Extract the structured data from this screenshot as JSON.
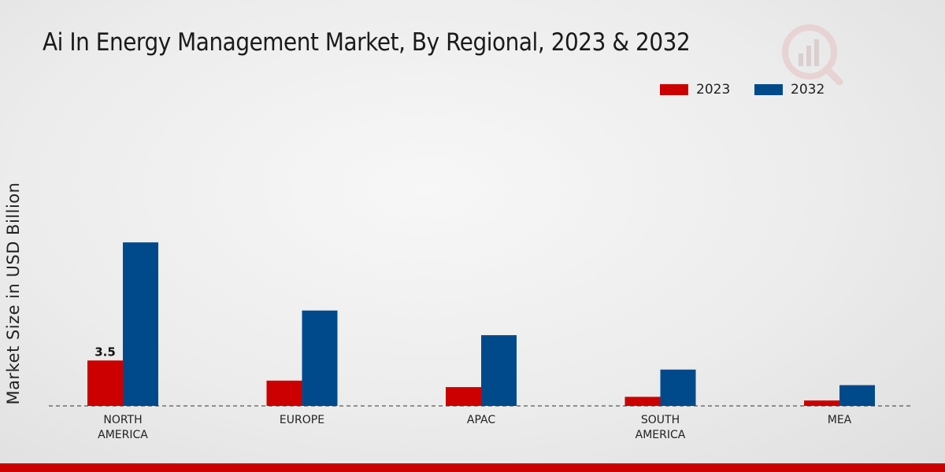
{
  "header": {
    "title": "Ai In Energy Management Market, By Regional, 2023 & 2032"
  },
  "colors": {
    "series_2023": "#cc0000",
    "series_2032": "#004a8c",
    "bottom_bar": "#cc0000"
  },
  "chart_data": {
    "type": "bar",
    "title": "Ai In Energy Management Market, By Regional, 2023 & 2032",
    "xlabel": "",
    "ylabel": "Market Size in USD Billion",
    "categories": [
      [
        "NORTH",
        "AMERICA"
      ],
      [
        "EUROPE"
      ],
      [
        "APAC"
      ],
      [
        "SOUTH",
        "AMERICA"
      ],
      [
        "MEA"
      ]
    ],
    "series": [
      {
        "name": "2023",
        "color": "#cc0000",
        "values": [
          3.5,
          1.95,
          1.45,
          0.7,
          0.42
        ]
      },
      {
        "name": "2032",
        "color": "#004a8c",
        "values": [
          12.6,
          7.35,
          5.45,
          2.8,
          1.6
        ]
      }
    ],
    "data_labels": [
      {
        "series": 0,
        "index": 0,
        "text": "3.5"
      }
    ],
    "ylim": [
      0,
      20
    ],
    "grid": false,
    "legend": "top-right"
  }
}
